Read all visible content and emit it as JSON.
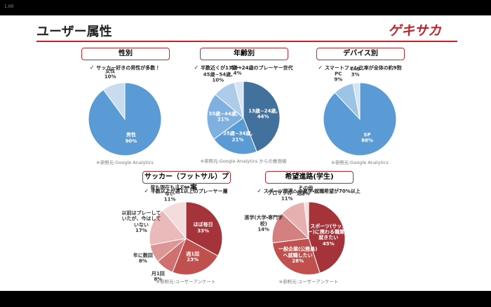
{
  "page_number": "1.00",
  "title": "ユーザー属性",
  "logo": "ゲキサカ",
  "chart_data": [
    {
      "type": "pie",
      "title": "性別",
      "subtitle": "サッカー好きの男性が多数！",
      "categories": [
        "男性",
        "女性"
      ],
      "values": [
        90,
        10
      ],
      "value_labels": [
        "90%",
        "10%"
      ],
      "colors": [
        "#5b9bd5",
        "#c9dcef"
      ],
      "source": "※参照元:Google Analytics"
    },
    {
      "type": "pie",
      "title": "年齢別",
      "subtitle": "半数近くが13歳～24歳のプレーヤー世代",
      "categories": [
        "13歳~24歳,",
        "25歳~34歳,",
        "35歳~44歳,",
        "45歳~54歳,",
        "55+,"
      ],
      "values": [
        44,
        21,
        21,
        10,
        4
      ],
      "value_labels": [
        "44%",
        "21%",
        "21%",
        "10%",
        "4%"
      ],
      "colors": [
        "#41719c",
        "#5b9bd5",
        "#7fb0e0",
        "#aecbea",
        "#d6e5f4"
      ],
      "source": "※参照元:Google Analytics からの推測値"
    },
    {
      "type": "pie",
      "title": "デバイス別",
      "subtitle": "スマートフォン比率が全体の約9割",
      "categories": [
        "SP",
        "PC",
        "TAB"
      ],
      "values": [
        88,
        9,
        3
      ],
      "value_labels": [
        "88%",
        "9%",
        "3%"
      ],
      "colors": [
        "#5b9bd5",
        "#9dc3e6",
        "#d2e3f3"
      ],
      "source": "※参照元:Google Analytics"
    },
    {
      "type": "pie",
      "title": "サッカー（フットサル）プレー率",
      "subtitle": "半数以上が週1以上のプレーヤー層",
      "categories": [
        "ほぼ毎日",
        "週1回",
        "月1回",
        "年に数回",
        "以前はプレーしていたが、今はしていない",
        "昔も現在もしていない"
      ],
      "values": [
        33,
        23,
        8,
        8,
        17,
        11
      ],
      "value_labels": [
        "33%",
        "23%",
        "8%",
        "8%",
        "17%",
        "11%"
      ],
      "colors": [
        "#a5343a",
        "#c0504d",
        "#d07070",
        "#dd9696",
        "#eab9b9",
        "#f4dcdc"
      ],
      "source": "※参照元:ユーザーアンケート"
    },
    {
      "type": "pie",
      "title": "希望進路(学生)",
      "subtitle": "スポーツ関連への進学・就職希望が70%以上",
      "categories": [
        "スポーツ(サッカー)に携わる職業に就きたい",
        "一般企業(公務員)へ就職したい",
        "進学(大学・専門学校)",
        "プロサッカー選手",
        "その他"
      ],
      "values": [
        45,
        28,
        14,
        11,
        2
      ],
      "value_labels": [
        "45%",
        "28%",
        "14%",
        "11%",
        "2%"
      ],
      "colors": [
        "#a5343a",
        "#c0504d",
        "#d48080",
        "#e6b0b0",
        "#f5dede"
      ],
      "source": "※参照元:ユーザーアンケート"
    }
  ]
}
